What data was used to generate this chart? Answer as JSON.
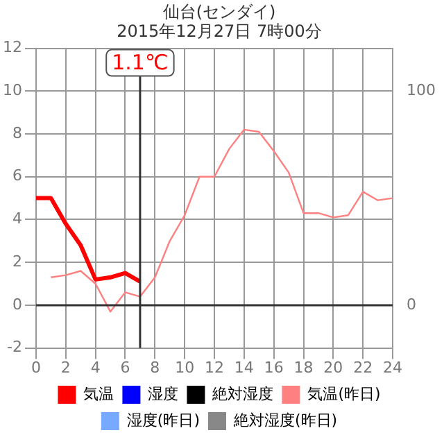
{
  "chart_data": {
    "type": "line",
    "title": "仙台(センダイ)",
    "subtitle": "2015年12月27日 7時00分",
    "x": [
      0,
      1,
      2,
      3,
      4,
      5,
      6,
      7,
      8,
      9,
      10,
      11,
      12,
      13,
      14,
      15,
      16,
      17,
      18,
      19,
      20,
      21,
      22,
      23,
      24
    ],
    "series": [
      {
        "name": "気温",
        "color": "#ff0000",
        "values": [
          5.0,
          5.0,
          3.8,
          2.8,
          1.2,
          1.3,
          1.5,
          1.1,
          null,
          null,
          null,
          null,
          null,
          null,
          null,
          null,
          null,
          null,
          null,
          null,
          null,
          null,
          null,
          null,
          null
        ]
      },
      {
        "name": "湿度",
        "color": "#0000ff",
        "values": [
          null,
          null,
          null,
          null,
          null,
          null,
          null,
          null,
          null,
          null,
          null,
          null,
          null,
          null,
          null,
          null,
          null,
          null,
          null,
          null,
          null,
          null,
          null,
          null,
          null
        ]
      },
      {
        "name": "絶対湿度",
        "color": "#000000",
        "values": [
          null,
          null,
          null,
          null,
          null,
          null,
          null,
          null,
          null,
          null,
          null,
          null,
          null,
          null,
          null,
          null,
          null,
          null,
          null,
          null,
          null,
          null,
          null,
          null,
          null
        ]
      },
      {
        "name": "気温(昨日)",
        "color": "#ff8080",
        "values": [
          null,
          1.3,
          1.4,
          1.6,
          1.0,
          -0.3,
          0.6,
          0.4,
          1.3,
          3.0,
          4.2,
          6.0,
          6.0,
          7.3,
          8.2,
          8.1,
          7.2,
          6.2,
          4.3,
          4.3,
          4.1,
          4.2,
          5.3,
          4.9,
          5.0
        ]
      },
      {
        "name": "湿度(昨日)",
        "color": "#77aaff",
        "values": [
          null,
          null,
          null,
          null,
          null,
          null,
          null,
          null,
          null,
          null,
          null,
          null,
          null,
          null,
          null,
          null,
          null,
          null,
          null,
          null,
          null,
          null,
          null,
          null,
          null
        ]
      },
      {
        "name": "絶対湿度(昨日)",
        "color": "#888888",
        "values": [
          null,
          null,
          null,
          null,
          null,
          null,
          null,
          null,
          null,
          null,
          null,
          null,
          null,
          null,
          null,
          null,
          null,
          null,
          null,
          null,
          null,
          null,
          null,
          null,
          null
        ]
      }
    ],
    "xlim": [
      0,
      24
    ],
    "xticks": [
      0,
      2,
      4,
      6,
      8,
      10,
      12,
      14,
      16,
      18,
      20,
      22,
      24
    ],
    "ylim": [
      -2,
      12
    ],
    "yticks": [
      -2,
      0,
      2,
      4,
      6,
      8,
      10,
      12
    ],
    "y2lim": [
      -20,
      120
    ],
    "y2ticks": [
      0,
      100
    ],
    "ref_lines": [
      {
        "axis": "x",
        "value": 7,
        "label": "1.1℃",
        "color": "#333333"
      },
      {
        "axis": "y",
        "value": 0,
        "color": "#333333"
      }
    ],
    "grid": true,
    "legend": "bottom",
    "marker": "none",
    "line_style": "solid"
  }
}
